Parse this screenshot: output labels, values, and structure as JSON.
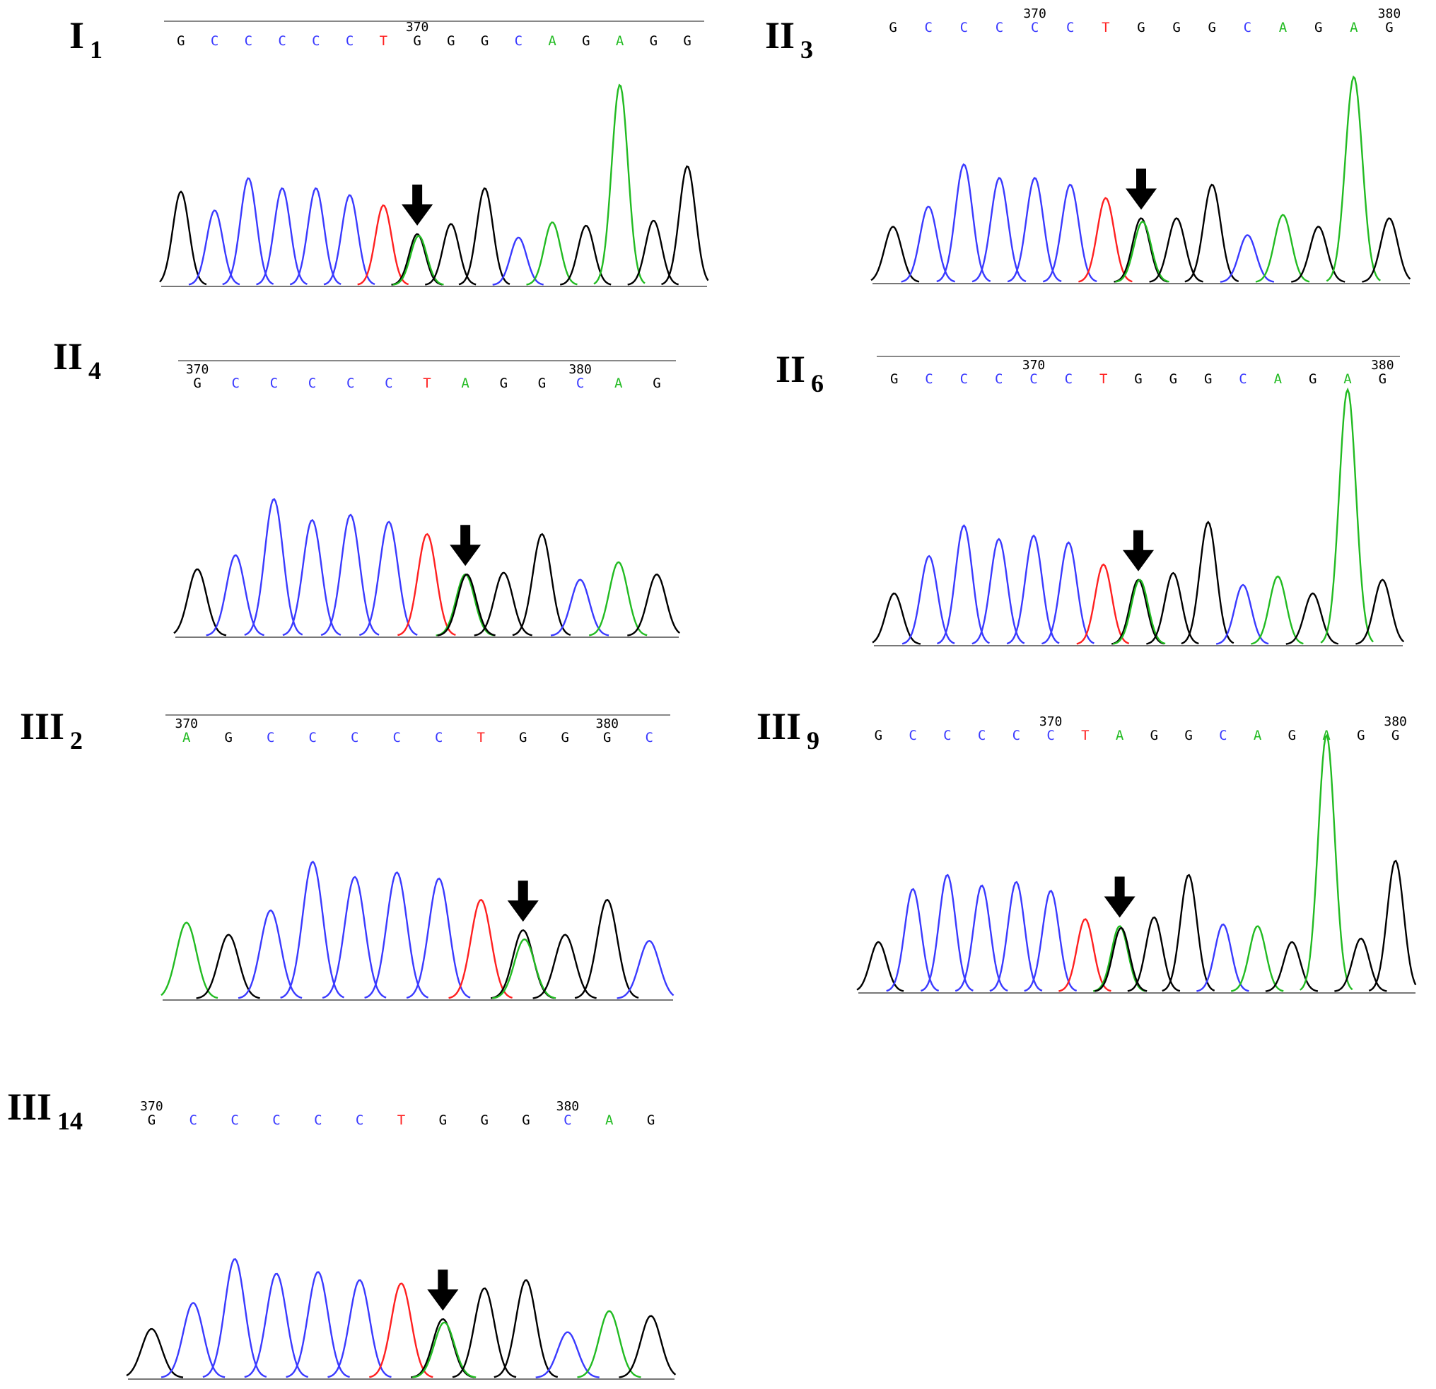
{
  "colors": {
    "A": "#22bb22",
    "C": "#3a3aff",
    "G": "#000000",
    "T": "#ff2020"
  },
  "panels": [
    {
      "gen": "I",
      "id": "1",
      "bases": [
        "G",
        "C",
        "C",
        "C",
        "C",
        "C",
        "T",
        "G",
        "G",
        "G",
        "C",
        "A",
        "G",
        "A",
        "G",
        "G"
      ],
      "position_labels": [
        {
          "after_base": 7,
          "text": "370"
        }
      ],
      "peaks": [
        0.55,
        0.44,
        0.63,
        0.57,
        0.57,
        0.53,
        0.47,
        0.3,
        0.36,
        0.57,
        0.28,
        0.37,
        0.35,
        1.18,
        0.38,
        0.7
      ],
      "het_peak": 7,
      "het_alt": "A",
      "het_alt_height": 0.29,
      "arrow_at": 7
    },
    {
      "gen": "II",
      "id": "3",
      "bases": [
        "G",
        "C",
        "C",
        "C",
        "C",
        "C",
        "T",
        "G",
        "G",
        "G",
        "C",
        "A",
        "G",
        "A",
        "G"
      ],
      "position_labels": [
        {
          "after_base": 4,
          "text": "370"
        },
        {
          "after_base": 14,
          "text": "380"
        }
      ],
      "peaks": [
        0.33,
        0.45,
        0.7,
        0.62,
        0.62,
        0.58,
        0.5,
        0.38,
        0.38,
        0.58,
        0.28,
        0.4,
        0.33,
        1.22,
        0.38
      ],
      "het_peak": 7,
      "het_alt": "A",
      "het_alt_height": 0.36,
      "arrow_at": 7
    },
    {
      "gen": "II",
      "id": "4",
      "bases": [
        "G",
        "C",
        "C",
        "C",
        "C",
        "C",
        "T",
        "A",
        "G",
        "G",
        "C",
        "A",
        "G"
      ],
      "position_labels": [
        {
          "after_base": 0,
          "text": "370"
        },
        {
          "after_base": 10,
          "text": "380"
        }
      ],
      "peaks": [
        0.38,
        0.46,
        0.78,
        0.66,
        0.69,
        0.65,
        0.58,
        0.35,
        0.36,
        0.58,
        0.32,
        0.42,
        0.35
      ],
      "het_peak": 7,
      "het_alt": "G",
      "het_alt_height": 0.35,
      "arrow_at": 7
    },
    {
      "gen": "II",
      "id": "6",
      "bases": [
        "G",
        "C",
        "C",
        "C",
        "C",
        "C",
        "T",
        "G",
        "G",
        "G",
        "C",
        "A",
        "G",
        "A",
        "G"
      ],
      "position_labels": [
        {
          "after_base": 4,
          "text": "370"
        },
        {
          "after_base": 14,
          "text": "380"
        }
      ],
      "peaks": [
        0.3,
        0.52,
        0.7,
        0.62,
        0.64,
        0.6,
        0.47,
        0.38,
        0.42,
        0.72,
        0.35,
        0.4,
        0.3,
        1.5,
        0.38
      ],
      "het_peak": 7,
      "het_alt": "A",
      "het_alt_height": 0.38,
      "arrow_at": 7
    },
    {
      "gen": "III",
      "id": "2",
      "bases": [
        "A",
        "G",
        "C",
        "C",
        "C",
        "C",
        "C",
        "T",
        "G",
        "G",
        "G",
        "C"
      ],
      "position_labels": [
        {
          "after_base": 0,
          "text": "370"
        },
        {
          "after_base": 10,
          "text": "380"
        }
      ],
      "peaks": [
        0.5,
        0.42,
        0.58,
        0.9,
        0.8,
        0.83,
        0.79,
        0.65,
        0.45,
        0.42,
        0.65,
        0.38
      ],
      "het_peak": 8,
      "het_alt": "A",
      "het_alt_height": 0.39,
      "arrow_at": 8
    },
    {
      "gen": "III",
      "id": "9",
      "bases": [
        "G",
        "C",
        "C",
        "C",
        "C",
        "C",
        "T",
        "A",
        "G",
        "G",
        "C",
        "A",
        "G",
        "A",
        "G",
        "G"
      ],
      "position_labels": [
        {
          "after_base": 5,
          "text": "370"
        },
        {
          "after_base": 15,
          "text": "380"
        }
      ],
      "peaks": [
        0.28,
        0.58,
        0.66,
        0.6,
        0.62,
        0.57,
        0.41,
        0.37,
        0.42,
        0.66,
        0.38,
        0.37,
        0.28,
        1.45,
        0.3,
        0.74
      ],
      "het_peak": 7,
      "het_alt": "G",
      "het_alt_height": 0.36,
      "arrow_at": 7
    },
    {
      "gen": "III",
      "id": "14",
      "bases": [
        "G",
        "C",
        "C",
        "C",
        "C",
        "C",
        "T",
        "G",
        "G",
        "G",
        "C",
        "A",
        "G"
      ],
      "position_labels": [
        {
          "after_base": 0,
          "text": "370"
        },
        {
          "after_base": 10,
          "text": "380"
        }
      ],
      "peaks": [
        0.3,
        0.46,
        0.73,
        0.64,
        0.65,
        0.6,
        0.58,
        0.36,
        0.55,
        0.6,
        0.28,
        0.41,
        0.38
      ],
      "het_peak": 7,
      "het_alt": "A",
      "het_alt_height": 0.34,
      "arrow_at": 7
    }
  ],
  "chart_data": [
    {
      "type": "line",
      "panel": "I 1",
      "x": [
        "G",
        "C",
        "C",
        "C",
        "C",
        "C",
        "T",
        "G",
        "G",
        "G",
        "C",
        "A",
        "G",
        "A",
        "G",
        "G"
      ],
      "values": [
        0.55,
        0.44,
        0.63,
        0.57,
        0.57,
        0.53,
        0.47,
        0.3,
        0.36,
        0.57,
        0.28,
        0.37,
        0.35,
        1.18,
        0.38,
        0.7
      ],
      "ticks": [
        "370"
      ]
    },
    {
      "type": "line",
      "panel": "II 3",
      "x": [
        "G",
        "C",
        "C",
        "C",
        "C",
        "C",
        "T",
        "G",
        "G",
        "G",
        "C",
        "A",
        "G",
        "A",
        "G"
      ],
      "values": [
        0.33,
        0.45,
        0.7,
        0.62,
        0.62,
        0.58,
        0.5,
        0.38,
        0.38,
        0.58,
        0.28,
        0.4,
        0.33,
        1.22,
        0.38
      ],
      "ticks": [
        "370",
        "380"
      ]
    },
    {
      "type": "line",
      "panel": "II 4",
      "x": [
        "G",
        "C",
        "C",
        "C",
        "C",
        "C",
        "T",
        "A",
        "G",
        "G",
        "C",
        "A",
        "G"
      ],
      "values": [
        0.38,
        0.46,
        0.78,
        0.66,
        0.69,
        0.65,
        0.58,
        0.35,
        0.36,
        0.58,
        0.32,
        0.42,
        0.35
      ],
      "ticks": [
        "370",
        "380"
      ]
    },
    {
      "type": "line",
      "panel": "II 6",
      "x": [
        "G",
        "C",
        "C",
        "C",
        "C",
        "C",
        "T",
        "G",
        "G",
        "G",
        "C",
        "A",
        "G",
        "A",
        "G"
      ],
      "values": [
        0.3,
        0.52,
        0.7,
        0.62,
        0.64,
        0.6,
        0.47,
        0.38,
        0.42,
        0.72,
        0.35,
        0.4,
        0.3,
        1.5,
        0.38
      ],
      "ticks": [
        "370",
        "380"
      ]
    },
    {
      "type": "line",
      "panel": "III 2",
      "x": [
        "A",
        "G",
        "C",
        "C",
        "C",
        "C",
        "C",
        "T",
        "G",
        "G",
        "G",
        "C"
      ],
      "values": [
        0.5,
        0.42,
        0.58,
        0.9,
        0.8,
        0.83,
        0.79,
        0.65,
        0.45,
        0.42,
        0.65,
        0.38
      ],
      "ticks": [
        "370",
        "380"
      ]
    },
    {
      "type": "line",
      "panel": "III 9",
      "x": [
        "G",
        "C",
        "C",
        "C",
        "C",
        "C",
        "T",
        "A",
        "G",
        "G",
        "C",
        "A",
        "G",
        "A",
        "G",
        "G"
      ],
      "values": [
        0.28,
        0.58,
        0.66,
        0.6,
        0.62,
        0.57,
        0.41,
        0.37,
        0.42,
        0.66,
        0.38,
        0.37,
        0.28,
        1.45,
        0.3,
        0.74
      ],
      "ticks": [
        "370",
        "380"
      ]
    },
    {
      "type": "line",
      "panel": "III 14",
      "x": [
        "G",
        "C",
        "C",
        "C",
        "C",
        "C",
        "T",
        "G",
        "G",
        "G",
        "C",
        "A",
        "G"
      ],
      "values": [
        0.3,
        0.46,
        0.73,
        0.64,
        0.65,
        0.6,
        0.58,
        0.36,
        0.55,
        0.6,
        0.28,
        0.41,
        0.38
      ],
      "ticks": [
        "370",
        "380"
      ]
    }
  ]
}
